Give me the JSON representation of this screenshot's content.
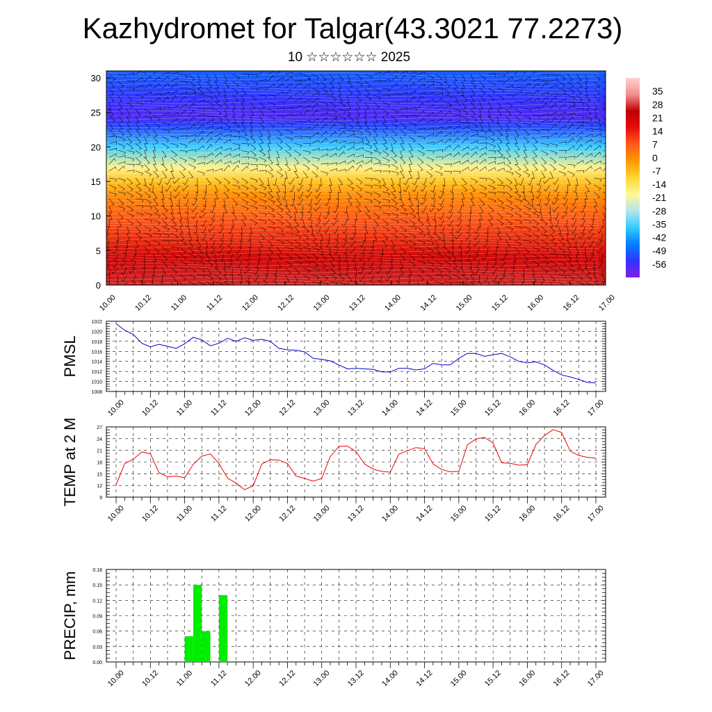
{
  "header": {
    "title": "Kazhydromet for Talgar(43.3021 77.2273)",
    "subtitle": "10 ☆☆☆☆☆☆ 2025"
  },
  "chart_data": [
    {
      "type": "heatmap",
      "x_tick_labels": [
        "10.00",
        "10.12",
        "11.00",
        "11.12",
        "12.00",
        "12.12",
        "13.00",
        "13.12",
        "14.00",
        "14.12",
        "15.00",
        "15.12",
        "16.00",
        "16.12",
        "17.00"
      ],
      "ylim": [
        0,
        31
      ],
      "y_ticks": [
        0,
        5,
        10,
        15,
        20,
        25,
        30
      ],
      "colorbar_labels": [
        "35",
        "28",
        "21",
        "14",
        "7",
        "0",
        "-7",
        "-14",
        "-21",
        "-28",
        "-35",
        "-42",
        "-49",
        "-56"
      ],
      "colorbar_range": [
        -63,
        42
      ],
      "overlay": "wind barbs",
      "level_temperature_profile": [
        {
          "level": 0,
          "value": 27
        },
        {
          "level": 4,
          "value": 20
        },
        {
          "level": 9,
          "value": 8
        },
        {
          "level": 13,
          "value": 0
        },
        {
          "level": 15,
          "value": -8
        },
        {
          "level": 17,
          "value": -18
        },
        {
          "level": 20,
          "value": -36
        },
        {
          "level": 23,
          "value": -52
        },
        {
          "level": 24.5,
          "value": -58
        },
        {
          "level": 27,
          "value": -54
        },
        {
          "level": 31,
          "value": -49
        }
      ],
      "colors": {
        "stops": [
          "#7a1fe6",
          "#3333ff",
          "#0080ff",
          "#33ccff",
          "#b3e6f0",
          "#fff799",
          "#ffd633",
          "#ff9900",
          "#ff5a1a",
          "#e60d0d",
          "#c00000",
          "#f29090",
          "#ffd0d0"
        ]
      }
    },
    {
      "type": "line",
      "ylabel": "PMSL",
      "ylim": [
        1008,
        1022
      ],
      "y_ticks": [
        1008,
        1010,
        1012,
        1014,
        1016,
        1018,
        1020,
        1022
      ],
      "x_tick_labels": [
        "10.00",
        "10.12",
        "11.00",
        "11.12",
        "12.00",
        "12.12",
        "13.00",
        "13.12",
        "14.00",
        "14.12",
        "15.00",
        "15.12",
        "16.00",
        "16.12",
        "17.00"
      ],
      "series": [
        {
          "color": "#0000cc",
          "values": [
            1021.5,
            1020.2,
            1019.4,
            1017.6,
            1016.9,
            1017.4,
            1017.0,
            1016.6,
            1017.5,
            1018.8,
            1018.3,
            1017.1,
            1017.6,
            1018.6,
            1018.0,
            1018.7,
            1018.2,
            1018.4,
            1018.0,
            1016.6,
            1016.3,
            1016.2,
            1015.9,
            1014.6,
            1014.4,
            1014.1,
            1013.3,
            1012.5,
            1012.6,
            1012.5,
            1012.4,
            1011.9,
            1011.9,
            1012.6,
            1012.6,
            1012.3,
            1012.5,
            1013.6,
            1013.3,
            1013.3,
            1014.6,
            1015.6,
            1015.6,
            1015.0,
            1015.3,
            1015.6,
            1014.9,
            1014.0,
            1013.7,
            1013.9,
            1013.3,
            1012.2,
            1011.3,
            1010.9,
            1010.4,
            1009.8,
            1009.7
          ]
        }
      ]
    },
    {
      "type": "line",
      "ylabel": "TEMP at 2 M",
      "ylim": [
        9,
        27
      ],
      "y_ticks": [
        9,
        12,
        15,
        18,
        21,
        24,
        27
      ],
      "x_tick_labels": [
        "10.00",
        "10.12",
        "11.00",
        "11.12",
        "12.00",
        "12.12",
        "13.00",
        "13.12",
        "14.00",
        "14.12",
        "15.00",
        "15.12",
        "16.00",
        "16.12",
        "17.00"
      ],
      "series": [
        {
          "color": "#ee0000",
          "values": [
            12.2,
            17.6,
            18.7,
            20.6,
            20.1,
            15.3,
            14.2,
            14.4,
            14.0,
            17.4,
            19.5,
            20.1,
            17.6,
            13.9,
            12.6,
            10.9,
            11.9,
            17.5,
            18.6,
            18.5,
            17.6,
            14.4,
            13.8,
            13.1,
            13.8,
            19.4,
            22.0,
            22.1,
            20.7,
            17.5,
            16.2,
            15.6,
            15.4,
            20.0,
            20.9,
            21.7,
            21.4,
            17.5,
            16.1,
            15.5,
            15.6,
            22.4,
            23.9,
            24.3,
            22.9,
            17.8,
            17.7,
            17.2,
            17.3,
            22.5,
            24.8,
            26.3,
            25.6,
            20.8,
            19.7,
            19.2,
            19.0
          ]
        }
      ]
    },
    {
      "type": "bar",
      "ylabel": "PRECIP, mm",
      "ylim": [
        0,
        0.18
      ],
      "y_ticks": [
        "0.00",
        "0.03",
        "0.06",
        "0.09",
        "0.12",
        "0.15",
        "0.18"
      ],
      "x_tick_labels": [
        "10.00",
        "10.12",
        "11.00",
        "11.12",
        "12.00",
        "12.12",
        "13.00",
        "13.12",
        "14.00",
        "14.12",
        "15.00",
        "15.12",
        "16.00",
        "16.12",
        "17.00"
      ],
      "bar_color": "#00ee00",
      "bars": [
        {
          "hour": 24,
          "value": 0.05
        },
        {
          "hour": 27,
          "value": 0.15
        },
        {
          "hour": 30,
          "value": 0.06
        },
        {
          "hour": 36,
          "value": 0.13
        }
      ]
    }
  ]
}
